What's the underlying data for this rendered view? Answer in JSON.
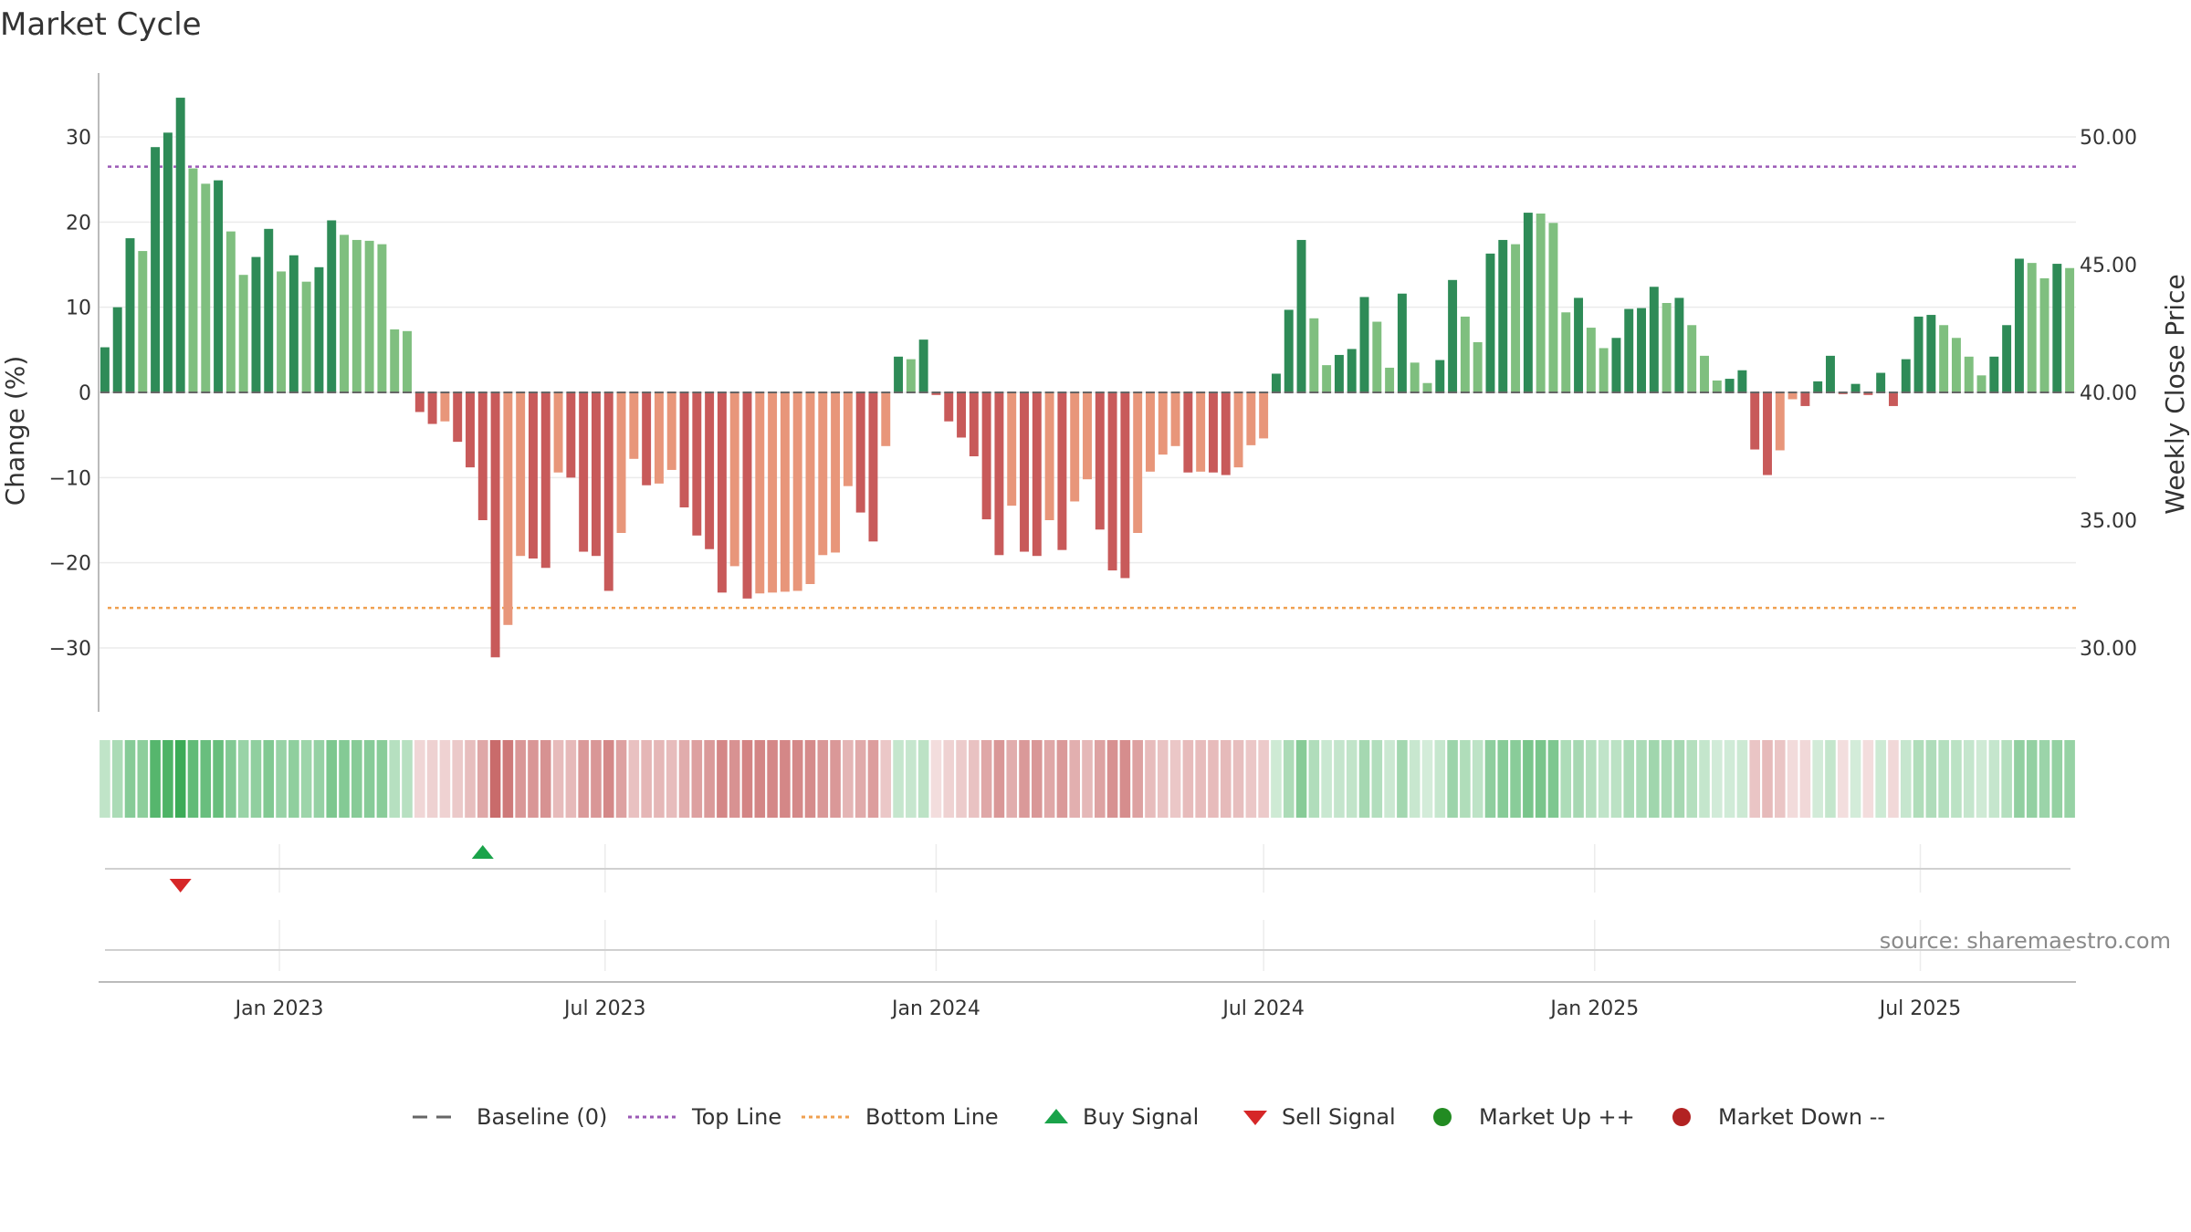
{
  "chart_data": {
    "type": "bar",
    "title": "Market Cycle",
    "ylabel": "Change (%)",
    "y2label": "Weekly Close Price",
    "ylim": [
      -37.5,
      37.5
    ],
    "y2lim": [
      27.5,
      52.5
    ],
    "yticks": [
      -30,
      -20,
      -10,
      0,
      10,
      20,
      30
    ],
    "yticklabels": [
      "−30",
      "−20",
      "−10",
      "0",
      "10",
      "20",
      "30"
    ],
    "y2ticks": [
      30,
      35,
      40,
      45,
      50
    ],
    "y2ticklabels": [
      "30.00",
      "35.00",
      "40.00",
      "45.00",
      "50.00"
    ],
    "x_start": "2022-09-26",
    "x_end": "2025-09-22",
    "x_step_days": 7,
    "xticks": [
      "2023-01-01",
      "2023-07-01",
      "2024-01-01",
      "2024-07-01",
      "2025-01-01",
      "2025-07-01"
    ],
    "xticklabels": [
      "Jan 2023",
      "Jul 2023",
      "Jan 2024",
      "Jul 2024",
      "Jan 2025",
      "Jul 2025"
    ],
    "top_line": 26.5,
    "bottom_line": -25.3,
    "grid": true,
    "legend_position": "bottom-center",
    "values": [
      5.3,
      10.0,
      18.1,
      16.6,
      28.8,
      30.5,
      34.6,
      26.3,
      24.5,
      24.9,
      18.9,
      13.8,
      15.9,
      19.2,
      14.2,
      16.1,
      13.0,
      14.7,
      20.2,
      18.5,
      17.9,
      17.8,
      17.4,
      7.4,
      7.2,
      -2.3,
      -3.7,
      -3.4,
      -5.8,
      -8.8,
      -15.0,
      -31.1,
      -27.3,
      -19.2,
      -19.5,
      -20.6,
      -9.4,
      -10.0,
      -18.7,
      -19.2,
      -23.3,
      -16.5,
      -7.8,
      -10.9,
      -10.7,
      -9.1,
      -13.5,
      -16.8,
      -18.4,
      -23.5,
      -20.4,
      -24.2,
      -23.6,
      -23.5,
      -23.4,
      -23.3,
      -22.5,
      -19.1,
      -18.8,
      -11.0,
      -14.1,
      -17.5,
      -6.3,
      4.2,
      3.9,
      6.2,
      -0.3,
      -3.4,
      -5.3,
      -7.5,
      -14.9,
      -19.1,
      -13.3,
      -18.7,
      -19.2,
      -15.0,
      -18.5,
      -12.8,
      -10.2,
      -16.1,
      -20.9,
      -21.8,
      -16.5,
      -9.3,
      -7.3,
      -6.3,
      -9.4,
      -9.3,
      -9.4,
      -9.7,
      -8.8,
      -6.2,
      -5.4,
      2.2,
      9.7,
      17.9,
      8.7,
      3.2,
      4.4,
      5.1,
      11.2,
      8.3,
      2.9,
      11.6,
      3.5,
      1.1,
      3.8,
      13.2,
      8.9,
      5.9,
      16.3,
      17.9,
      17.4,
      21.1,
      21.0,
      19.9,
      9.4,
      11.1,
      7.6,
      5.2,
      6.4,
      9.8,
      9.9,
      12.4,
      10.5,
      11.1,
      7.9,
      4.3,
      1.4,
      1.6,
      2.6,
      -6.7,
      -9.7,
      -6.8,
      -0.8,
      -1.6,
      1.3,
      4.3,
      -0.2,
      1.0,
      -0.3,
      2.3,
      -1.6,
      3.9,
      8.9,
      9.1,
      7.9,
      6.4,
      4.2,
      2.0,
      4.2,
      7.9,
      15.7,
      15.2,
      13.4,
      15.1,
      14.6
    ],
    "series_colors": {
      "up_strong": "#2e8b57",
      "up_weak": "#7fbf7f",
      "down_strong": "#c85a5a",
      "down_weak": "#e8967a",
      "top_line": "#9b59b6",
      "bottom_line": "#f0a050"
    },
    "signals": {
      "sell": [
        "2022-11-07"
      ],
      "buy": [
        "2023-04-24"
      ],
      "buy_color": "#1aa34a",
      "sell_color": "#d62728"
    },
    "source": "source: sharemaestro.com",
    "legend": [
      {
        "label": "Baseline (0)",
        "marker": "dash",
        "color": "#666666"
      },
      {
        "label": "Top Line",
        "marker": "dotted",
        "color": "#9b59b6"
      },
      {
        "label": "Bottom Line",
        "marker": "dotted",
        "color": "#f0a050"
      },
      {
        "label": "Buy Signal",
        "marker": "triangle-up",
        "color": "#1aa34a"
      },
      {
        "label": "Sell Signal",
        "marker": "triangle-down",
        "color": "#d62728"
      },
      {
        "label": "Market Up ++",
        "marker": "circle",
        "color": "#228b22"
      },
      {
        "label": "Market Down --",
        "marker": "circle",
        "color": "#b22222"
      }
    ]
  }
}
